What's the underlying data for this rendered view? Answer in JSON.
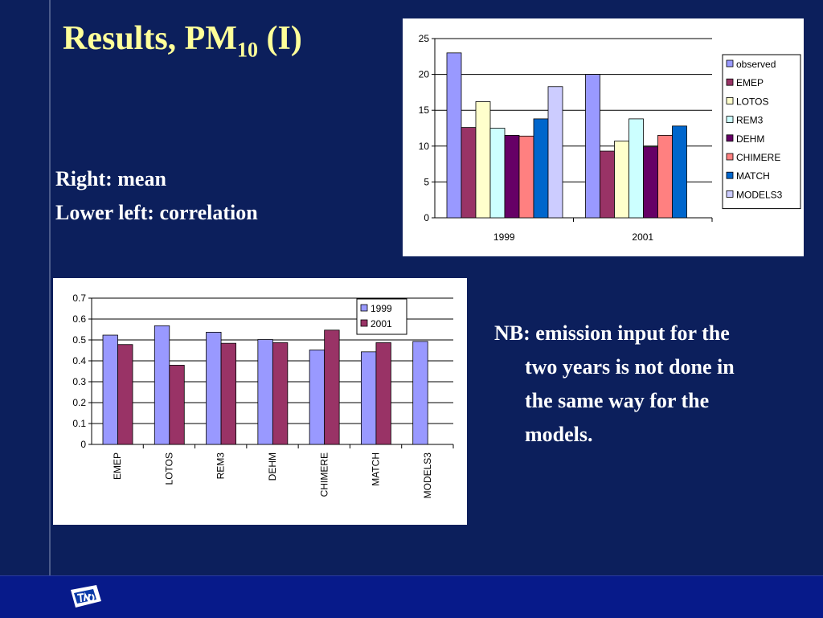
{
  "slide": {
    "title_main": "Results, PM",
    "title_sub": "10",
    "title_suffix": " (I)",
    "line1": "Right: mean",
    "line2": "Lower left: correlation",
    "note_lines": [
      "NB: emission input for the",
      "two years is not done in",
      "the same way for the",
      "models."
    ]
  },
  "colors": {
    "background": "#0c1f5c",
    "title": "#ffff99",
    "text": "#ffffff"
  },
  "chart_data": [
    {
      "type": "bar",
      "categories": [
        "1999",
        "2001"
      ],
      "series": [
        {
          "name": "observed",
          "values": [
            23,
            20
          ],
          "color": "#9999ff"
        },
        {
          "name": "EMEP",
          "values": [
            12.6,
            9.3
          ],
          "color": "#993366"
        },
        {
          "name": "LOTOS",
          "values": [
            16.2,
            10.7
          ],
          "color": "#ffffcc"
        },
        {
          "name": "REM3",
          "values": [
            12.5,
            13.8
          ],
          "color": "#ccffff"
        },
        {
          "name": "DEHM",
          "values": [
            11.5,
            9.9
          ],
          "color": "#660066"
        },
        {
          "name": "CHIMERE",
          "values": [
            11.4,
            11.5
          ],
          "color": "#ff8080"
        },
        {
          "name": "MATCH",
          "values": [
            13.8,
            12.8
          ],
          "color": "#0066cc"
        },
        {
          "name": "MODELS3",
          "values": [
            18.3,
            null
          ],
          "color": "#ccccff"
        }
      ],
      "yticks": [
        "0",
        "5",
        "10",
        "15",
        "20",
        "25"
      ],
      "ylim": [
        0,
        25
      ],
      "grid": true,
      "legend": "right"
    },
    {
      "type": "bar",
      "categories": [
        "EMEP",
        "LOTOS",
        "REM3",
        "DEHM",
        "CHIMERE",
        "MATCH",
        "MODELS3"
      ],
      "series": [
        {
          "name": "1999",
          "values": [
            0.523,
            0.568,
            0.537,
            0.502,
            0.452,
            0.443,
            0.493
          ],
          "color": "#9999ff"
        },
        {
          "name": "2001",
          "values": [
            0.478,
            0.379,
            0.484,
            0.487,
            0.547,
            0.487,
            null
          ],
          "color": "#993366"
        }
      ],
      "yticks": [
        "0",
        "0.1",
        "0.2",
        "0.3",
        "0.4",
        "0.5",
        "0.6",
        "0.7"
      ],
      "ylim": [
        0,
        0.7
      ],
      "grid": true,
      "legend": "top-right"
    }
  ]
}
